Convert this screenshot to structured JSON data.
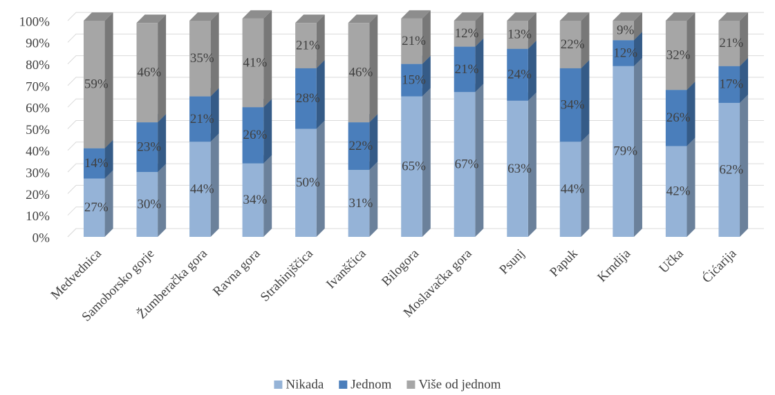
{
  "chart_data": {
    "type": "bar",
    "stacked": true,
    "categories": [
      "Medvednica",
      "Samoborsko gorje",
      "Žumberačka gora",
      "Ravna gora",
      "Strahinjščica",
      "Ivanščica",
      "Bilogora",
      "Moslavačka gora",
      "Psunj",
      "Papuk",
      "Krndija",
      "Učka",
      "Ćićarija"
    ],
    "series": [
      {
        "name": "Nikada",
        "color": "#95b3d7",
        "values": [
          27,
          30,
          44,
          34,
          50,
          31,
          65,
          67,
          63,
          44,
          79,
          42,
          62
        ],
        "value_labels": [
          "27%",
          "30%",
          "44%",
          "34%",
          "50%",
          "31%",
          "65%",
          "67%",
          "63%",
          "44%",
          "79%",
          "42%",
          "62%"
        ]
      },
      {
        "name": "Jednom",
        "color": "#4a7ebb",
        "values": [
          14,
          23,
          21,
          26,
          28,
          22,
          15,
          21,
          24,
          34,
          12,
          26,
          17
        ],
        "value_labels": [
          "14%",
          "23%",
          "21%",
          "26%",
          "28%",
          "22%",
          "15%",
          "21%",
          "24%",
          "34%",
          "12%",
          "26%",
          "17%"
        ]
      },
      {
        "name": "Više od jednom",
        "color": "#a6a6a6",
        "values": [
          59,
          46,
          35,
          41,
          21,
          46,
          21,
          12,
          13,
          22,
          9,
          32,
          21
        ],
        "value_labels": [
          "59%",
          "46%",
          "35%",
          "41%",
          "21%",
          "46%",
          "21%",
          "12%",
          "13%",
          "22%",
          "9%",
          "32%",
          "21%"
        ]
      }
    ],
    "ylim": [
      0,
      100
    ],
    "yticks": [
      {
        "value": 0,
        "label": "0%"
      },
      {
        "value": 10,
        "label": "10%"
      },
      {
        "value": 20,
        "label": "20%"
      },
      {
        "value": 30,
        "label": "30%"
      },
      {
        "value": 40,
        "label": "40%"
      },
      {
        "value": 50,
        "label": "50%"
      },
      {
        "value": 60,
        "label": "60%"
      },
      {
        "value": 70,
        "label": "70%"
      },
      {
        "value": 80,
        "label": "80%"
      },
      {
        "value": 90,
        "label": "90%"
      },
      {
        "value": 100,
        "label": "100%"
      }
    ],
    "grid": true,
    "legend": "bottom"
  }
}
